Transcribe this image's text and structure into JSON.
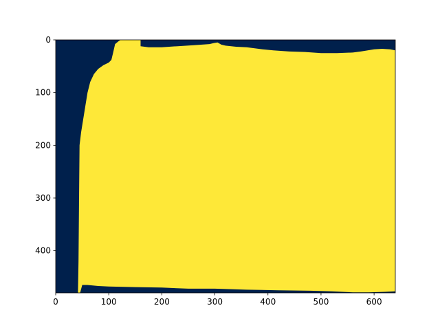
{
  "chart_data": {
    "type": "heatmap",
    "image_size": {
      "width": 640,
      "height": 480
    },
    "xlim": [
      0,
      640
    ],
    "ylim": [
      480,
      0
    ],
    "x_ticks": [
      0,
      100,
      200,
      300,
      400,
      500,
      600
    ],
    "y_ticks": [
      0,
      100,
      200,
      300,
      400
    ],
    "x_tick_labels": [
      "0",
      "100",
      "200",
      "300",
      "400",
      "500",
      "600"
    ],
    "y_tick_labels": [
      "0",
      "100",
      "200",
      "300",
      "400"
    ],
    "grid": false,
    "legend": false,
    "colormap": "cividis",
    "colors": {
      "background_class": "#00204c",
      "foreground_class": "#fee838"
    },
    "mask_outline": [
      [
        42,
        480
      ],
      [
        43,
        420
      ],
      [
        44,
        300
      ],
      [
        45,
        200
      ],
      [
        48,
        175
      ],
      [
        52,
        150
      ],
      [
        56,
        125
      ],
      [
        60,
        100
      ],
      [
        65,
        80
      ],
      [
        72,
        65
      ],
      [
        80,
        55
      ],
      [
        90,
        48
      ],
      [
        100,
        43
      ],
      [
        105,
        38
      ],
      [
        108,
        25
      ],
      [
        112,
        8
      ],
      [
        118,
        3
      ],
      [
        122,
        0
      ],
      [
        130,
        0
      ],
      [
        160,
        0
      ],
      [
        160,
        12
      ],
      [
        175,
        14
      ],
      [
        200,
        14
      ],
      [
        230,
        12
      ],
      [
        260,
        10
      ],
      [
        290,
        8
      ],
      [
        298,
        6
      ],
      [
        305,
        5
      ],
      [
        312,
        9
      ],
      [
        320,
        11
      ],
      [
        340,
        13
      ],
      [
        360,
        14
      ],
      [
        390,
        18
      ],
      [
        410,
        20
      ],
      [
        440,
        22
      ],
      [
        470,
        23
      ],
      [
        500,
        25
      ],
      [
        530,
        25
      ],
      [
        560,
        24
      ],
      [
        575,
        22
      ],
      [
        588,
        20
      ],
      [
        600,
        18
      ],
      [
        615,
        17
      ],
      [
        630,
        18
      ],
      [
        640,
        20
      ],
      [
        640,
        477
      ],
      [
        620,
        478
      ],
      [
        590,
        479
      ],
      [
        560,
        479
      ],
      [
        520,
        477
      ],
      [
        480,
        476
      ],
      [
        420,
        475
      ],
      [
        360,
        474
      ],
      [
        300,
        472
      ],
      [
        250,
        472
      ],
      [
        200,
        470
      ],
      [
        150,
        469
      ],
      [
        100,
        468
      ],
      [
        80,
        467
      ],
      [
        60,
        465
      ],
      [
        50,
        465
      ],
      [
        46,
        480
      ]
    ]
  }
}
